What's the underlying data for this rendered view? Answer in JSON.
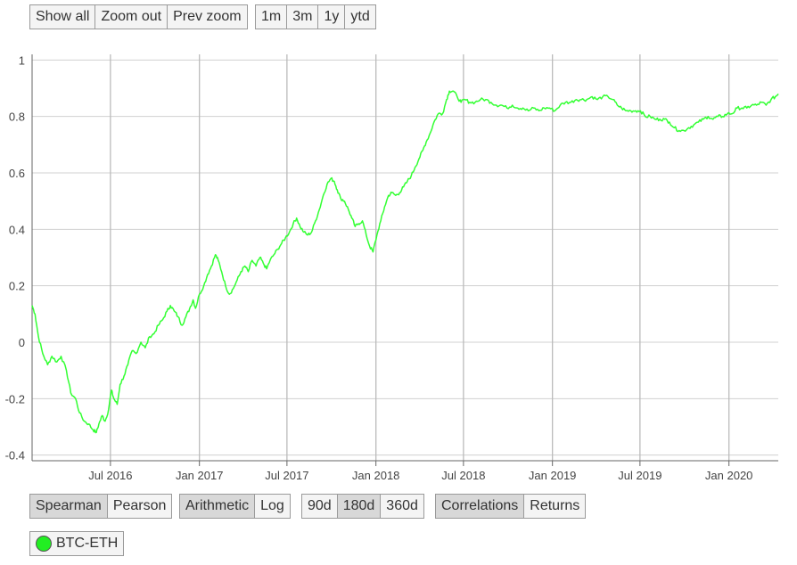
{
  "toolbar_top": {
    "zoom_buttons": [
      {
        "label": "Show all",
        "name": "show-all-button"
      },
      {
        "label": "Zoom out",
        "name": "zoom-out-button"
      },
      {
        "label": "Prev zoom",
        "name": "prev-zoom-button"
      }
    ],
    "range_buttons": [
      {
        "label": "1m",
        "name": "range-1m-button"
      },
      {
        "label": "3m",
        "name": "range-3m-button"
      },
      {
        "label": "1y",
        "name": "range-1y-button"
      },
      {
        "label": "ytd",
        "name": "range-ytd-button"
      }
    ]
  },
  "toolbar_bottom": {
    "method_buttons": [
      {
        "label": "Spearman",
        "name": "spearman-button",
        "active": true
      },
      {
        "label": "Pearson",
        "name": "pearson-button",
        "active": false
      }
    ],
    "scale_buttons": [
      {
        "label": "Arithmetic",
        "name": "arithmetic-button",
        "active": true
      },
      {
        "label": "Log",
        "name": "log-button",
        "active": false
      }
    ],
    "window_buttons": [
      {
        "label": "90d",
        "name": "window-90d-button",
        "active": false
      },
      {
        "label": "180d",
        "name": "window-180d-button",
        "active": true
      },
      {
        "label": "360d",
        "name": "window-360d-button",
        "active": false
      }
    ],
    "view_buttons": [
      {
        "label": "Correlations",
        "name": "correlations-button",
        "active": true
      },
      {
        "label": "Returns",
        "name": "returns-button",
        "active": false
      }
    ]
  },
  "legend": {
    "label": "BTC-ETH",
    "color": "#22ee22",
    "series_label": "BTC-ETH"
  },
  "colors": {
    "line": "#33ff33",
    "grid": "#d0d0d0",
    "vgrid": "#bbbbbb",
    "axis": "#666666",
    "button_bg": "#f4f4f4",
    "button_active_bg": "#d8d8d8"
  },
  "chart_data": {
    "type": "line",
    "grid": true,
    "xlim": [
      "2016-01-21",
      "2020-04-12"
    ],
    "ylim": [
      -0.42,
      1.02
    ],
    "y_ticks": [
      {
        "value": 1,
        "label": "1"
      },
      {
        "value": 0.8,
        "label": "0.8"
      },
      {
        "value": 0.6,
        "label": "0.6"
      },
      {
        "value": 0.4,
        "label": "0.4"
      },
      {
        "value": 0.2,
        "label": "0.2"
      },
      {
        "value": 0,
        "label": "0"
      },
      {
        "value": -0.2,
        "label": "-0.2"
      },
      {
        "value": -0.4,
        "label": "-0.4"
      }
    ],
    "x_ticks": [
      {
        "date": "2016-07-01",
        "label": "Jul 2016"
      },
      {
        "date": "2017-01-01",
        "label": "Jan 2017"
      },
      {
        "date": "2017-07-01",
        "label": "Jul 2017"
      },
      {
        "date": "2018-01-01",
        "label": "Jan 2018"
      },
      {
        "date": "2018-07-01",
        "label": "Jul 2018"
      },
      {
        "date": "2019-01-01",
        "label": "Jan 2019"
      },
      {
        "date": "2019-07-01",
        "label": "Jul 2019"
      },
      {
        "date": "2020-01-01",
        "label": "Jan 2020"
      }
    ],
    "series": [
      {
        "name": "BTC-ETH",
        "points": [
          [
            "2016-01-21",
            0.13
          ],
          [
            "2016-01-27",
            0.1
          ],
          [
            "2016-02-03",
            0.02
          ],
          [
            "2016-02-12",
            -0.04
          ],
          [
            "2016-02-22",
            -0.08
          ],
          [
            "2016-03-02",
            -0.05
          ],
          [
            "2016-03-12",
            -0.07
          ],
          [
            "2016-03-21",
            -0.05
          ],
          [
            "2016-04-01",
            -0.1
          ],
          [
            "2016-04-10",
            -0.18
          ],
          [
            "2016-04-20",
            -0.2
          ],
          [
            "2016-04-28",
            -0.25
          ],
          [
            "2016-05-08",
            -0.28
          ],
          [
            "2016-05-17",
            -0.29
          ],
          [
            "2016-05-26",
            -0.31
          ],
          [
            "2016-06-02",
            -0.32
          ],
          [
            "2016-06-07",
            -0.29
          ],
          [
            "2016-06-14",
            -0.26
          ],
          [
            "2016-06-20",
            -0.28
          ],
          [
            "2016-06-27",
            -0.24
          ],
          [
            "2016-07-03",
            -0.17
          ],
          [
            "2016-07-08",
            -0.2
          ],
          [
            "2016-07-15",
            -0.22
          ],
          [
            "2016-07-21",
            -0.15
          ],
          [
            "2016-07-29",
            -0.12
          ],
          [
            "2016-08-06",
            -0.08
          ],
          [
            "2016-08-15",
            -0.03
          ],
          [
            "2016-08-23",
            -0.04
          ],
          [
            "2016-09-02",
            0.0
          ],
          [
            "2016-09-11",
            -0.02
          ],
          [
            "2016-09-20",
            0.02
          ],
          [
            "2016-09-29",
            0.03
          ],
          [
            "2016-10-08",
            0.06
          ],
          [
            "2016-10-17",
            0.08
          ],
          [
            "2016-10-26",
            0.11
          ],
          [
            "2016-11-02",
            0.13
          ],
          [
            "2016-11-10",
            0.11
          ],
          [
            "2016-11-18",
            0.09
          ],
          [
            "2016-11-26",
            0.06
          ],
          [
            "2016-12-04",
            0.09
          ],
          [
            "2016-12-12",
            0.12
          ],
          [
            "2016-12-19",
            0.15
          ],
          [
            "2016-12-24",
            0.12
          ],
          [
            "2017-01-01",
            0.17
          ],
          [
            "2017-01-10",
            0.2
          ],
          [
            "2017-01-18",
            0.24
          ],
          [
            "2017-01-26",
            0.27
          ],
          [
            "2017-02-03",
            0.31
          ],
          [
            "2017-02-09",
            0.29
          ],
          [
            "2017-02-16",
            0.25
          ],
          [
            "2017-02-24",
            0.2
          ],
          [
            "2017-03-04",
            0.17
          ],
          [
            "2017-03-12",
            0.19
          ],
          [
            "2017-03-20",
            0.22
          ],
          [
            "2017-03-28",
            0.25
          ],
          [
            "2017-04-05",
            0.27
          ],
          [
            "2017-04-12",
            0.25
          ],
          [
            "2017-04-20",
            0.29
          ],
          [
            "2017-04-28",
            0.27
          ],
          [
            "2017-05-06",
            0.3
          ],
          [
            "2017-05-13",
            0.28
          ],
          [
            "2017-05-20",
            0.26
          ],
          [
            "2017-05-27",
            0.29
          ],
          [
            "2017-06-04",
            0.31
          ],
          [
            "2017-06-12",
            0.33
          ],
          [
            "2017-06-20",
            0.35
          ],
          [
            "2017-06-28",
            0.37
          ],
          [
            "2017-07-06",
            0.39
          ],
          [
            "2017-07-14",
            0.42
          ],
          [
            "2017-07-21",
            0.44
          ],
          [
            "2017-07-28",
            0.41
          ],
          [
            "2017-08-05",
            0.39
          ],
          [
            "2017-08-13",
            0.38
          ],
          [
            "2017-08-21",
            0.39
          ],
          [
            "2017-08-29",
            0.43
          ],
          [
            "2017-09-06",
            0.47
          ],
          [
            "2017-09-14",
            0.52
          ],
          [
            "2017-09-22",
            0.56
          ],
          [
            "2017-09-30",
            0.58
          ],
          [
            "2017-10-07",
            0.57
          ],
          [
            "2017-10-13",
            0.54
          ],
          [
            "2017-10-20",
            0.51
          ],
          [
            "2017-10-28",
            0.5
          ],
          [
            "2017-11-05",
            0.47
          ],
          [
            "2017-11-12",
            0.44
          ],
          [
            "2017-11-19",
            0.41
          ],
          [
            "2017-11-26",
            0.42
          ],
          [
            "2017-12-04",
            0.43
          ],
          [
            "2017-12-12",
            0.38
          ],
          [
            "2017-12-19",
            0.34
          ],
          [
            "2017-12-26",
            0.32
          ],
          [
            "2018-01-03",
            0.38
          ],
          [
            "2018-01-11",
            0.43
          ],
          [
            "2018-01-19",
            0.48
          ],
          [
            "2018-01-27",
            0.52
          ],
          [
            "2018-02-03",
            0.53
          ],
          [
            "2018-02-11",
            0.52
          ],
          [
            "2018-02-19",
            0.53
          ],
          [
            "2018-02-27",
            0.55
          ],
          [
            "2018-03-07",
            0.57
          ],
          [
            "2018-03-15",
            0.59
          ],
          [
            "2018-03-23",
            0.62
          ],
          [
            "2018-03-31",
            0.65
          ],
          [
            "2018-04-08",
            0.68
          ],
          [
            "2018-04-15",
            0.71
          ],
          [
            "2018-04-23",
            0.74
          ],
          [
            "2018-05-01",
            0.78
          ],
          [
            "2018-05-10",
            0.81
          ],
          [
            "2018-05-19",
            0.81
          ],
          [
            "2018-05-27",
            0.86
          ],
          [
            "2018-06-02",
            0.89
          ],
          [
            "2018-06-10",
            0.89
          ],
          [
            "2018-06-18",
            0.87
          ],
          [
            "2018-06-26",
            0.85
          ],
          [
            "2018-07-04",
            0.86
          ],
          [
            "2018-07-14",
            0.85
          ],
          [
            "2018-07-25",
            0.85
          ],
          [
            "2018-08-05",
            0.86
          ],
          [
            "2018-08-16",
            0.86
          ],
          [
            "2018-08-27",
            0.85
          ],
          [
            "2018-09-07",
            0.84
          ],
          [
            "2018-09-18",
            0.84
          ],
          [
            "2018-09-29",
            0.83
          ],
          [
            "2018-10-10",
            0.84
          ],
          [
            "2018-10-21",
            0.83
          ],
          [
            "2018-11-01",
            0.83
          ],
          [
            "2018-11-12",
            0.82
          ],
          [
            "2018-11-23",
            0.83
          ],
          [
            "2018-12-04",
            0.82
          ],
          [
            "2018-12-15",
            0.83
          ],
          [
            "2018-12-26",
            0.83
          ],
          [
            "2019-01-06",
            0.82
          ],
          [
            "2019-01-17",
            0.84
          ],
          [
            "2019-01-28",
            0.85
          ],
          [
            "2019-02-08",
            0.85
          ],
          [
            "2019-02-19",
            0.86
          ],
          [
            "2019-03-02",
            0.86
          ],
          [
            "2019-03-13",
            0.86
          ],
          [
            "2019-03-24",
            0.87
          ],
          [
            "2019-04-04",
            0.86
          ],
          [
            "2019-04-15",
            0.87
          ],
          [
            "2019-04-26",
            0.87
          ],
          [
            "2019-05-06",
            0.86
          ],
          [
            "2019-05-15",
            0.84
          ],
          [
            "2019-05-24",
            0.83
          ],
          [
            "2019-06-02",
            0.82
          ],
          [
            "2019-06-12",
            0.82
          ],
          [
            "2019-06-22",
            0.82
          ],
          [
            "2019-07-02",
            0.82
          ],
          [
            "2019-07-12",
            0.8
          ],
          [
            "2019-07-22",
            0.8
          ],
          [
            "2019-08-01",
            0.79
          ],
          [
            "2019-08-11",
            0.79
          ],
          [
            "2019-08-21",
            0.79
          ],
          [
            "2019-08-31",
            0.78
          ],
          [
            "2019-09-10",
            0.76
          ],
          [
            "2019-09-20",
            0.75
          ],
          [
            "2019-09-30",
            0.75
          ],
          [
            "2019-10-10",
            0.76
          ],
          [
            "2019-10-20",
            0.77
          ],
          [
            "2019-10-30",
            0.78
          ],
          [
            "2019-11-09",
            0.79
          ],
          [
            "2019-11-19",
            0.8
          ],
          [
            "2019-11-29",
            0.79
          ],
          [
            "2019-12-09",
            0.8
          ],
          [
            "2019-12-19",
            0.8
          ],
          [
            "2019-12-29",
            0.81
          ],
          [
            "2020-01-08",
            0.81
          ],
          [
            "2020-01-18",
            0.83
          ],
          [
            "2020-01-28",
            0.83
          ],
          [
            "2020-02-07",
            0.83
          ],
          [
            "2020-02-17",
            0.84
          ],
          [
            "2020-02-27",
            0.84
          ],
          [
            "2020-03-08",
            0.85
          ],
          [
            "2020-03-18",
            0.84
          ],
          [
            "2020-03-28",
            0.86
          ],
          [
            "2020-04-06",
            0.87
          ],
          [
            "2020-04-12",
            0.88
          ]
        ]
      }
    ]
  }
}
